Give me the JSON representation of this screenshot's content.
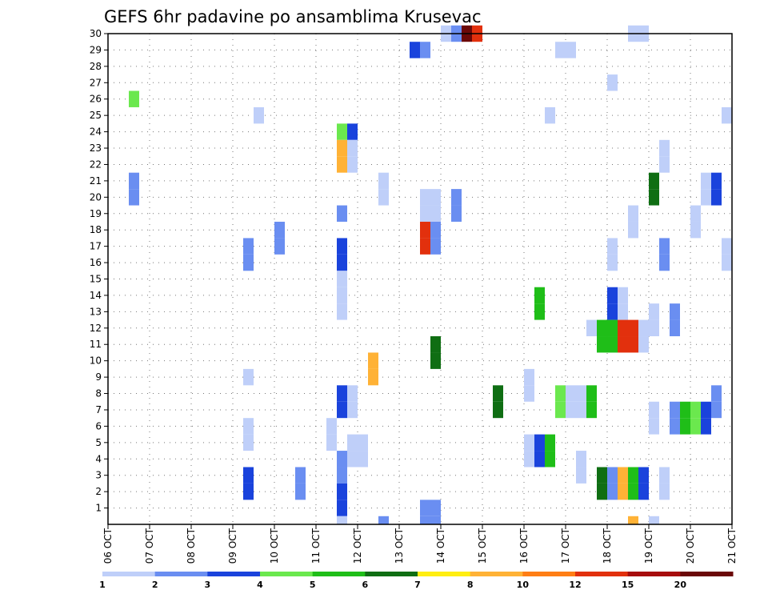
{
  "chart_data": {
    "type": "heatmap",
    "title": "GEFS 6hr padavine po ansamblima Krusevac",
    "x_ticks": [
      "06 OCT",
      "07 OCT",
      "08 OCT",
      "09 OCT",
      "10 OCT",
      "11 OCT",
      "12 OCT",
      "13 OCT",
      "14 OCT",
      "15 OCT",
      "16 OCT",
      "17 OCT",
      "18 OCT",
      "19 OCT",
      "20 OCT",
      "21 OCT"
    ],
    "x_start": "06 OCT",
    "x_end": "21 OCT",
    "y_ticks": [
      1,
      2,
      3,
      4,
      5,
      6,
      7,
      8,
      9,
      10,
      11,
      12,
      13,
      14,
      15,
      16,
      17,
      18,
      19,
      20,
      21,
      22,
      23,
      24,
      25,
      26,
      27,
      28,
      29,
      30
    ],
    "ylim": [
      0,
      30
    ],
    "grid": true,
    "legend": {
      "placement": "bottom",
      "colors": [
        "#bfcff9",
        "#6a8ef1",
        "#1a43dc",
        "#6be84e",
        "#1fbe18",
        "#0f6e13",
        "#ffee11",
        "#ffb236",
        "#ff7e15",
        "#e2300d",
        "#a70d0d",
        "#6b0808"
      ],
      "labels": [
        "1",
        "2",
        "3",
        "4",
        "5",
        "6",
        "7",
        "8",
        "10",
        "12",
        "15",
        "20"
      ]
    },
    "cells": [
      {
        "day": 14.0,
        "m": 30,
        "c": 1
      },
      {
        "day": 14.25,
        "m": 30,
        "c": 2
      },
      {
        "day": 14.5,
        "m": 30,
        "c": 12
      },
      {
        "day": 14.75,
        "m": 30,
        "c": 10
      },
      {
        "day": 18.5,
        "m": 30,
        "c": 1
      },
      {
        "day": 18.75,
        "m": 30,
        "c": 1
      },
      {
        "day": 13.25,
        "m": 29,
        "c": 3
      },
      {
        "day": 13.5,
        "m": 29,
        "c": 2
      },
      {
        "day": 16.75,
        "m": 29,
        "c": 1
      },
      {
        "day": 17.0,
        "m": 29,
        "c": 1
      },
      {
        "day": 18.0,
        "m": 27,
        "c": 1
      },
      {
        "day": 6.5,
        "m": 26,
        "c": 4
      },
      {
        "day": 9.5,
        "m": 25,
        "c": 1
      },
      {
        "day": 16.5,
        "m": 25,
        "c": 1
      },
      {
        "day": 20.75,
        "m": 25,
        "c": 1
      },
      {
        "day": 11.5,
        "m": 24,
        "c": 4
      },
      {
        "day": 11.75,
        "m": 24,
        "c": 3
      },
      {
        "day": 11.5,
        "m": 23,
        "c": 8
      },
      {
        "day": 11.75,
        "m": 23,
        "c": 1
      },
      {
        "day": 19.25,
        "m": 23,
        "c": 1
      },
      {
        "day": 11.5,
        "m": 22,
        "c": 8
      },
      {
        "day": 11.75,
        "m": 22,
        "c": 1
      },
      {
        "day": 19.25,
        "m": 22,
        "c": 1
      },
      {
        "day": 6.5,
        "m": 21,
        "c": 2
      },
      {
        "day": 12.5,
        "m": 21,
        "c": 1
      },
      {
        "day": 19.0,
        "m": 21,
        "c": 6
      },
      {
        "day": 20.25,
        "m": 21,
        "c": 1
      },
      {
        "day": 20.5,
        "m": 21,
        "c": 3
      },
      {
        "day": 6.5,
        "m": 20,
        "c": 2
      },
      {
        "day": 12.5,
        "m": 20,
        "c": 1
      },
      {
        "day": 13.5,
        "m": 20,
        "c": 1
      },
      {
        "day": 13.75,
        "m": 20,
        "c": 1
      },
      {
        "day": 14.25,
        "m": 20,
        "c": 2
      },
      {
        "day": 19.0,
        "m": 20,
        "c": 6
      },
      {
        "day": 20.25,
        "m": 20,
        "c": 1
      },
      {
        "day": 20.5,
        "m": 20,
        "c": 3
      },
      {
        "day": 11.5,
        "m": 19,
        "c": 2
      },
      {
        "day": 13.5,
        "m": 19,
        "c": 1
      },
      {
        "day": 13.75,
        "m": 19,
        "c": 1
      },
      {
        "day": 14.25,
        "m": 19,
        "c": 2
      },
      {
        "day": 18.5,
        "m": 19,
        "c": 1
      },
      {
        "day": 20.0,
        "m": 19,
        "c": 1
      },
      {
        "day": 10.0,
        "m": 18,
        "c": 2
      },
      {
        "day": 13.5,
        "m": 18,
        "c": 10
      },
      {
        "day": 13.75,
        "m": 18,
        "c": 2
      },
      {
        "day": 18.5,
        "m": 18,
        "c": 1
      },
      {
        "day": 20.0,
        "m": 18,
        "c": 1
      },
      {
        "day": 9.25,
        "m": 17,
        "c": 2
      },
      {
        "day": 10.0,
        "m": 17,
        "c": 2
      },
      {
        "day": 11.5,
        "m": 17,
        "c": 3
      },
      {
        "day": 13.5,
        "m": 17,
        "c": 10
      },
      {
        "day": 13.75,
        "m": 17,
        "c": 2
      },
      {
        "day": 18.0,
        "m": 17,
        "c": 1
      },
      {
        "day": 19.25,
        "m": 17,
        "c": 2
      },
      {
        "day": 20.75,
        "m": 17,
        "c": 1
      },
      {
        "day": 9.25,
        "m": 16,
        "c": 2
      },
      {
        "day": 11.5,
        "m": 16,
        "c": 3
      },
      {
        "day": 18.0,
        "m": 16,
        "c": 1
      },
      {
        "day": 19.25,
        "m": 16,
        "c": 2
      },
      {
        "day": 20.75,
        "m": 16,
        "c": 1
      },
      {
        "day": 11.5,
        "m": 15,
        "c": 1
      },
      {
        "day": 11.5,
        "m": 14,
        "c": 1
      },
      {
        "day": 16.25,
        "m": 14,
        "c": 5
      },
      {
        "day": 18.0,
        "m": 14,
        "c": 3
      },
      {
        "day": 18.25,
        "m": 14,
        "c": 1
      },
      {
        "day": 11.5,
        "m": 13,
        "c": 1
      },
      {
        "day": 16.25,
        "m": 13,
        "c": 5
      },
      {
        "day": 18.0,
        "m": 13,
        "c": 3
      },
      {
        "day": 18.25,
        "m": 13,
        "c": 1
      },
      {
        "day": 19.0,
        "m": 13,
        "c": 1
      },
      {
        "day": 19.5,
        "m": 13,
        "c": 2
      },
      {
        "day": 17.5,
        "m": 12,
        "c": 1
      },
      {
        "day": 17.75,
        "m": 12,
        "c": 5
      },
      {
        "day": 18.0,
        "m": 12,
        "c": 5
      },
      {
        "day": 18.25,
        "m": 12,
        "c": 10
      },
      {
        "day": 18.5,
        "m": 12,
        "c": 10
      },
      {
        "day": 18.75,
        "m": 12,
        "c": 1
      },
      {
        "day": 19.0,
        "m": 12,
        "c": 1
      },
      {
        "day": 19.5,
        "m": 12,
        "c": 2
      },
      {
        "day": 13.75,
        "m": 11,
        "c": 6
      },
      {
        "day": 17.75,
        "m": 11,
        "c": 5
      },
      {
        "day": 18.0,
        "m": 11,
        "c": 5
      },
      {
        "day": 18.25,
        "m": 11,
        "c": 10
      },
      {
        "day": 18.5,
        "m": 11,
        "c": 10
      },
      {
        "day": 18.75,
        "m": 11,
        "c": 1
      },
      {
        "day": 12.25,
        "m": 10,
        "c": 8
      },
      {
        "day": 13.75,
        "m": 10,
        "c": 6
      },
      {
        "day": 9.25,
        "m": 9,
        "c": 1
      },
      {
        "day": 12.25,
        "m": 9,
        "c": 8
      },
      {
        "day": 16.0,
        "m": 9,
        "c": 1
      },
      {
        "day": 11.5,
        "m": 8,
        "c": 3
      },
      {
        "day": 11.75,
        "m": 8,
        "c": 1
      },
      {
        "day": 15.25,
        "m": 8,
        "c": 6
      },
      {
        "day": 16.0,
        "m": 8,
        "c": 1
      },
      {
        "day": 16.75,
        "m": 8,
        "c": 4
      },
      {
        "day": 17.0,
        "m": 8,
        "c": 1
      },
      {
        "day": 17.25,
        "m": 8,
        "c": 1
      },
      {
        "day": 17.5,
        "m": 8,
        "c": 5
      },
      {
        "day": 20.5,
        "m": 8,
        "c": 2
      },
      {
        "day": 11.5,
        "m": 7,
        "c": 3
      },
      {
        "day": 11.75,
        "m": 7,
        "c": 1
      },
      {
        "day": 15.25,
        "m": 7,
        "c": 6
      },
      {
        "day": 16.75,
        "m": 7,
        "c": 4
      },
      {
        "day": 17.0,
        "m": 7,
        "c": 1
      },
      {
        "day": 17.25,
        "m": 7,
        "c": 1
      },
      {
        "day": 17.5,
        "m": 7,
        "c": 5
      },
      {
        "day": 19.0,
        "m": 7,
        "c": 1
      },
      {
        "day": 19.5,
        "m": 7,
        "c": 2
      },
      {
        "day": 19.75,
        "m": 7,
        "c": 5
      },
      {
        "day": 20.0,
        "m": 7,
        "c": 4
      },
      {
        "day": 20.25,
        "m": 7,
        "c": 3
      },
      {
        "day": 20.5,
        "m": 7,
        "c": 2
      },
      {
        "day": 9.25,
        "m": 6,
        "c": 1
      },
      {
        "day": 11.25,
        "m": 6,
        "c": 1
      },
      {
        "day": 19.0,
        "m": 6,
        "c": 1
      },
      {
        "day": 19.5,
        "m": 6,
        "c": 2
      },
      {
        "day": 19.75,
        "m": 6,
        "c": 5
      },
      {
        "day": 20.0,
        "m": 6,
        "c": 4
      },
      {
        "day": 20.25,
        "m": 6,
        "c": 3
      },
      {
        "day": 9.25,
        "m": 5,
        "c": 1
      },
      {
        "day": 11.25,
        "m": 5,
        "c": 1
      },
      {
        "day": 11.75,
        "m": 5,
        "c": 1
      },
      {
        "day": 12.0,
        "m": 5,
        "c": 1
      },
      {
        "day": 16.0,
        "m": 5,
        "c": 1
      },
      {
        "day": 16.25,
        "m": 5,
        "c": 3
      },
      {
        "day": 16.5,
        "m": 5,
        "c": 5
      },
      {
        "day": 11.5,
        "m": 4,
        "c": 2
      },
      {
        "day": 11.75,
        "m": 4,
        "c": 1
      },
      {
        "day": 12.0,
        "m": 4,
        "c": 1
      },
      {
        "day": 16.0,
        "m": 4,
        "c": 1
      },
      {
        "day": 16.25,
        "m": 4,
        "c": 3
      },
      {
        "day": 16.5,
        "m": 4,
        "c": 5
      },
      {
        "day": 17.25,
        "m": 4,
        "c": 1
      },
      {
        "day": 9.25,
        "m": 3,
        "c": 3
      },
      {
        "day": 10.5,
        "m": 3,
        "c": 2
      },
      {
        "day": 11.5,
        "m": 3,
        "c": 2
      },
      {
        "day": 17.25,
        "m": 3,
        "c": 1
      },
      {
        "day": 17.75,
        "m": 3,
        "c": 6
      },
      {
        "day": 18.0,
        "m": 3,
        "c": 2
      },
      {
        "day": 18.25,
        "m": 3,
        "c": 8
      },
      {
        "day": 18.5,
        "m": 3,
        "c": 5
      },
      {
        "day": 18.75,
        "m": 3,
        "c": 3
      },
      {
        "day": 19.25,
        "m": 3,
        "c": 1
      },
      {
        "day": 9.25,
        "m": 2,
        "c": 3
      },
      {
        "day": 10.5,
        "m": 2,
        "c": 2
      },
      {
        "day": 11.5,
        "m": 2,
        "c": 3
      },
      {
        "day": 17.75,
        "m": 2,
        "c": 6
      },
      {
        "day": 18.0,
        "m": 2,
        "c": 2
      },
      {
        "day": 18.25,
        "m": 2,
        "c": 8
      },
      {
        "day": 18.5,
        "m": 2,
        "c": 5
      },
      {
        "day": 18.75,
        "m": 2,
        "c": 3
      },
      {
        "day": 19.25,
        "m": 2,
        "c": 1
      },
      {
        "day": 11.5,
        "m": 1,
        "c": 3
      },
      {
        "day": 13.5,
        "m": 1,
        "c": 2
      },
      {
        "day": 13.75,
        "m": 1,
        "c": 2
      },
      {
        "day": 11.5,
        "m": 0,
        "c": 1
      },
      {
        "day": 12.5,
        "m": 0,
        "c": 2
      },
      {
        "day": 13.5,
        "m": 0,
        "c": 2
      },
      {
        "day": 13.75,
        "m": 0,
        "c": 2
      },
      {
        "day": 18.5,
        "m": 0,
        "c": 8
      },
      {
        "day": 19.0,
        "m": 0,
        "c": 1
      }
    ]
  }
}
